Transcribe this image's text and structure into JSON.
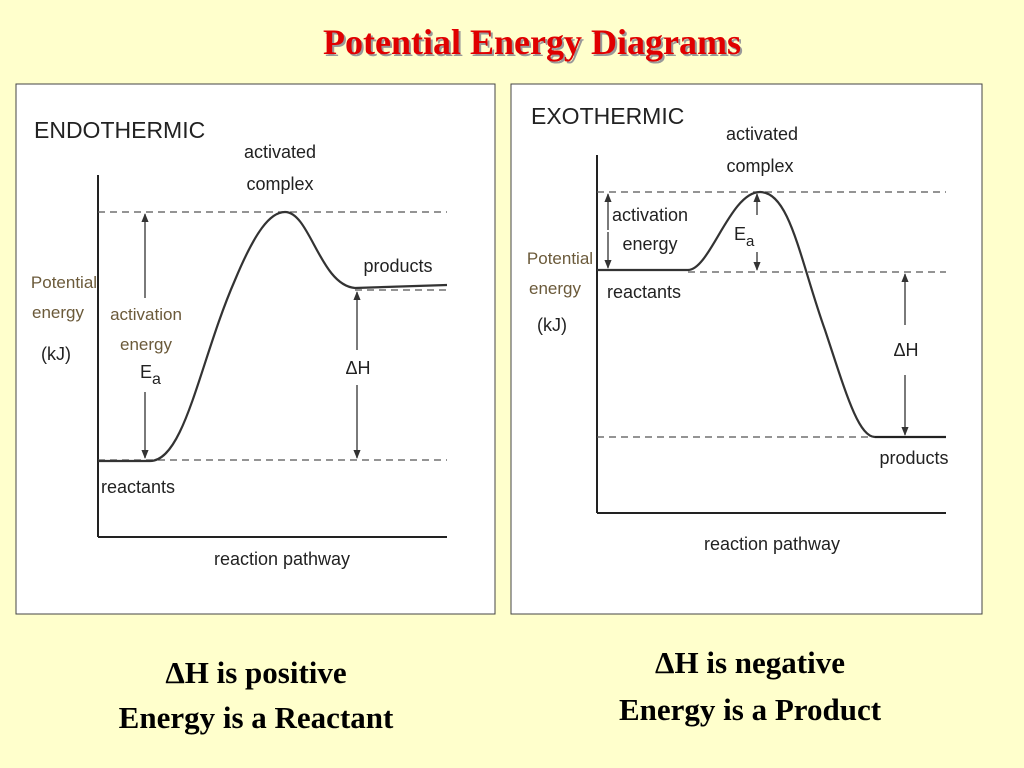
{
  "title": "Potential Energy Diagrams",
  "panels": [
    {
      "heading": "ENDOTHERMIC",
      "activated_complex": [
        "activated",
        "complex"
      ],
      "activation_energy": [
        "activation",
        "energy"
      ],
      "ea": {
        "main": "E",
        "sub": "a"
      },
      "products": "products",
      "reactants": "reactants",
      "y_axis_label": [
        "Potential",
        "energy",
        "(kJ)"
      ],
      "delta_h": "ΔH",
      "x_axis_label": "reaction pathway"
    },
    {
      "heading": "EXOTHERMIC",
      "activated_complex": [
        "activated",
        "complex"
      ],
      "activation_energy": [
        "activation",
        "energy"
      ],
      "ea": {
        "main": "E",
        "sub": "a"
      },
      "products": "products",
      "reactants": "reactants",
      "y_axis_label": [
        "Potential",
        "energy",
        "(kJ)"
      ],
      "delta_h": "ΔH",
      "x_axis_label": "reaction pathway"
    }
  ],
  "captions": [
    [
      "ΔH is positive",
      "Energy is a Reactant"
    ],
    [
      "ΔH is negative",
      "Energy is a Product"
    ]
  ]
}
